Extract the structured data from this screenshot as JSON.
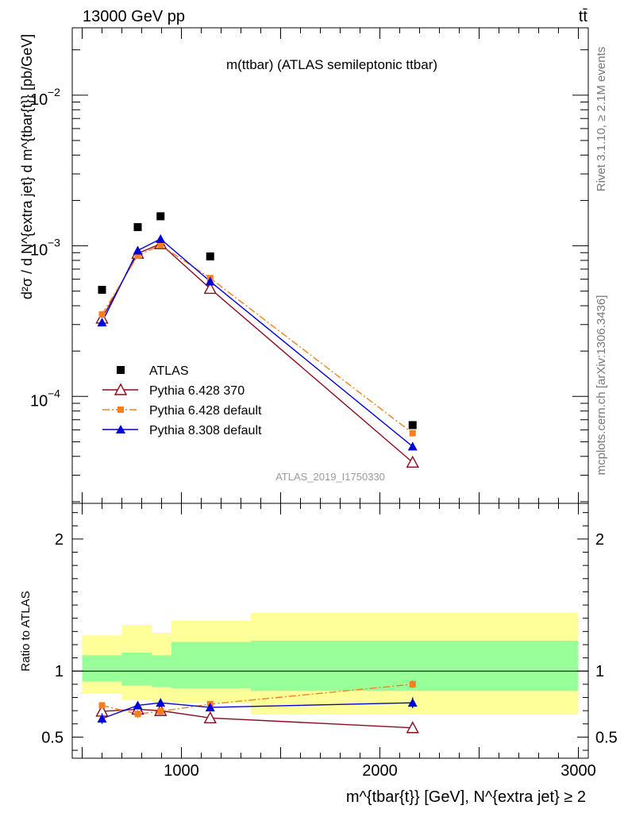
{
  "header": {
    "beam": "13000 GeV pp",
    "process": "tt̄"
  },
  "side_labels": {
    "rivet": "Rivet 3.1.10, ≥ 2.1M events",
    "mcplots": "mcplots.cern.ch [arXiv:1306.3436]"
  },
  "colors": {
    "atlas": "#000000",
    "p6_370": "#8b0a1e",
    "p6_default": "#f57f20",
    "p8_default": "#0000d8",
    "band_inner": "#99ff99",
    "band_outer": "#ffff99"
  },
  "chart_data": [
    {
      "type": "scatter",
      "title": "m(ttbar) (ATLAS semileptonic ttbar)",
      "ylabel": "d²σ / d N^{extra jet} d m^{tbar{t}} [pb/GeV]",
      "watermark": "ATLAS_2019_I1750330",
      "yscale": "log",
      "xlim": [
        450,
        3050
      ],
      "ylim": [
        1.95e-05,
        0.028
      ],
      "yticks": [
        {
          "value": 0.01,
          "label": "10",
          "exp": "−2"
        },
        {
          "value": 0.001,
          "label": "10",
          "exp": "−3"
        },
        {
          "value": 0.0001,
          "label": "10",
          "exp": "−4"
        }
      ],
      "legend_position": "lower-left",
      "series": [
        {
          "name": "ATLAS",
          "marker": "square",
          "line": "none",
          "x": [
            600,
            780,
            895,
            1145,
            2165
          ],
          "y": [
            0.00051,
            0.00133,
            0.00157,
            0.00085,
            6.45e-05
          ]
        },
        {
          "name": "Pythia 6.428 370",
          "marker": "open-triangle",
          "line": "solid",
          "x": [
            600,
            780,
            895,
            1145,
            2165
          ],
          "y": [
            0.00033,
            0.00089,
            0.00103,
            0.00052,
            3.65e-05
          ]
        },
        {
          "name": "Pythia 6.428 default",
          "marker": "small-square",
          "line": "dashdot",
          "x": [
            600,
            780,
            895,
            1145,
            2165
          ],
          "y": [
            0.00035,
            0.00086,
            0.00101,
            0.00061,
            5.7e-05
          ]
        },
        {
          "name": "Pythia 8.308 default",
          "marker": "filled-triangle",
          "line": "solid",
          "x": [
            600,
            780,
            895,
            1145,
            2165
          ],
          "y": [
            0.00031,
            0.00093,
            0.00111,
            0.00058,
            4.65e-05
          ]
        }
      ]
    },
    {
      "type": "line",
      "ylabel": "Ratio to ATLAS",
      "xlabel": "m^{tbar{t}} [GeV], N^{extra jet} ≥ 2",
      "xlim": [
        450,
        3050
      ],
      "ylim": [
        0.34,
        2.27
      ],
      "xticks": [
        {
          "value": 1000,
          "label": "1000"
        },
        {
          "value": 2000,
          "label": "2000"
        },
        {
          "value": 3000,
          "label": "3000"
        }
      ],
      "yticks": [
        {
          "value": 0.5,
          "label": "0.5"
        },
        {
          "value": 1,
          "label": "1"
        },
        {
          "value": 2,
          "label": "2"
        }
      ],
      "bands": [
        {
          "xlo": 500,
          "xhi": 700,
          "inner": [
            0.92,
            1.12
          ],
          "outer": [
            0.83,
            1.27
          ]
        },
        {
          "xlo": 700,
          "xhi": 850,
          "inner": [
            0.89,
            1.14
          ],
          "outer": [
            0.78,
            1.35
          ]
        },
        {
          "xlo": 850,
          "xhi": 950,
          "inner": [
            0.88,
            1.12
          ],
          "outer": [
            0.77,
            1.29
          ]
        },
        {
          "xlo": 950,
          "xhi": 1350,
          "inner": [
            0.87,
            1.22
          ],
          "outer": [
            0.76,
            1.38
          ]
        },
        {
          "xlo": 1350,
          "xhi": 3000,
          "inner": [
            0.85,
            1.23
          ],
          "outer": [
            0.67,
            1.44
          ]
        }
      ],
      "series": [
        {
          "name": "Pythia 6.428 370",
          "x": [
            600,
            780,
            895,
            1145,
            2165
          ],
          "y": [
            0.695,
            0.71,
            0.7,
            0.645,
            0.57
          ],
          "err": [
            0.02,
            0.02,
            0.02,
            0.01,
            0.03
          ]
        },
        {
          "name": "Pythia 6.428 default",
          "x": [
            600,
            780,
            895,
            1145,
            2165
          ],
          "y": [
            0.74,
            0.675,
            0.695,
            0.75,
            0.9
          ],
          "err": [
            0.025,
            0.03,
            0.02,
            0.015,
            0.03
          ]
        },
        {
          "name": "Pythia 8.308 default",
          "x": [
            600,
            780,
            895,
            1145,
            2165
          ],
          "y": [
            0.64,
            0.74,
            0.76,
            0.725,
            0.76
          ],
          "err": [
            0.04,
            0.03,
            0.03,
            0.02,
            0.04
          ]
        }
      ]
    }
  ]
}
